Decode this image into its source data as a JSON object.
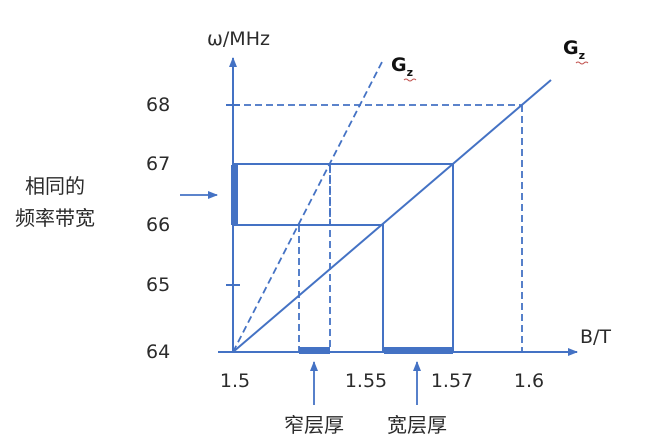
{
  "axes": {
    "y_title": "ω/MHz",
    "x_title": "B/T",
    "y_ticks": [
      "64",
      "65",
      "66",
      "67",
      "68"
    ],
    "x_ticks": [
      "1.5",
      "1.55",
      "1.57",
      "1.6"
    ]
  },
  "lines": {
    "steep_label": "G",
    "steep_sub": "z",
    "gentle_label": "G",
    "gentle_sub": "z"
  },
  "annotations": {
    "bandwidth_line1": "相同的",
    "bandwidth_line2": "频率带宽",
    "thin_slice": "窄层厚",
    "thick_slice": "宽层厚"
  },
  "colors": {
    "line": "#4472c4",
    "text": "#2b2b2b"
  }
}
